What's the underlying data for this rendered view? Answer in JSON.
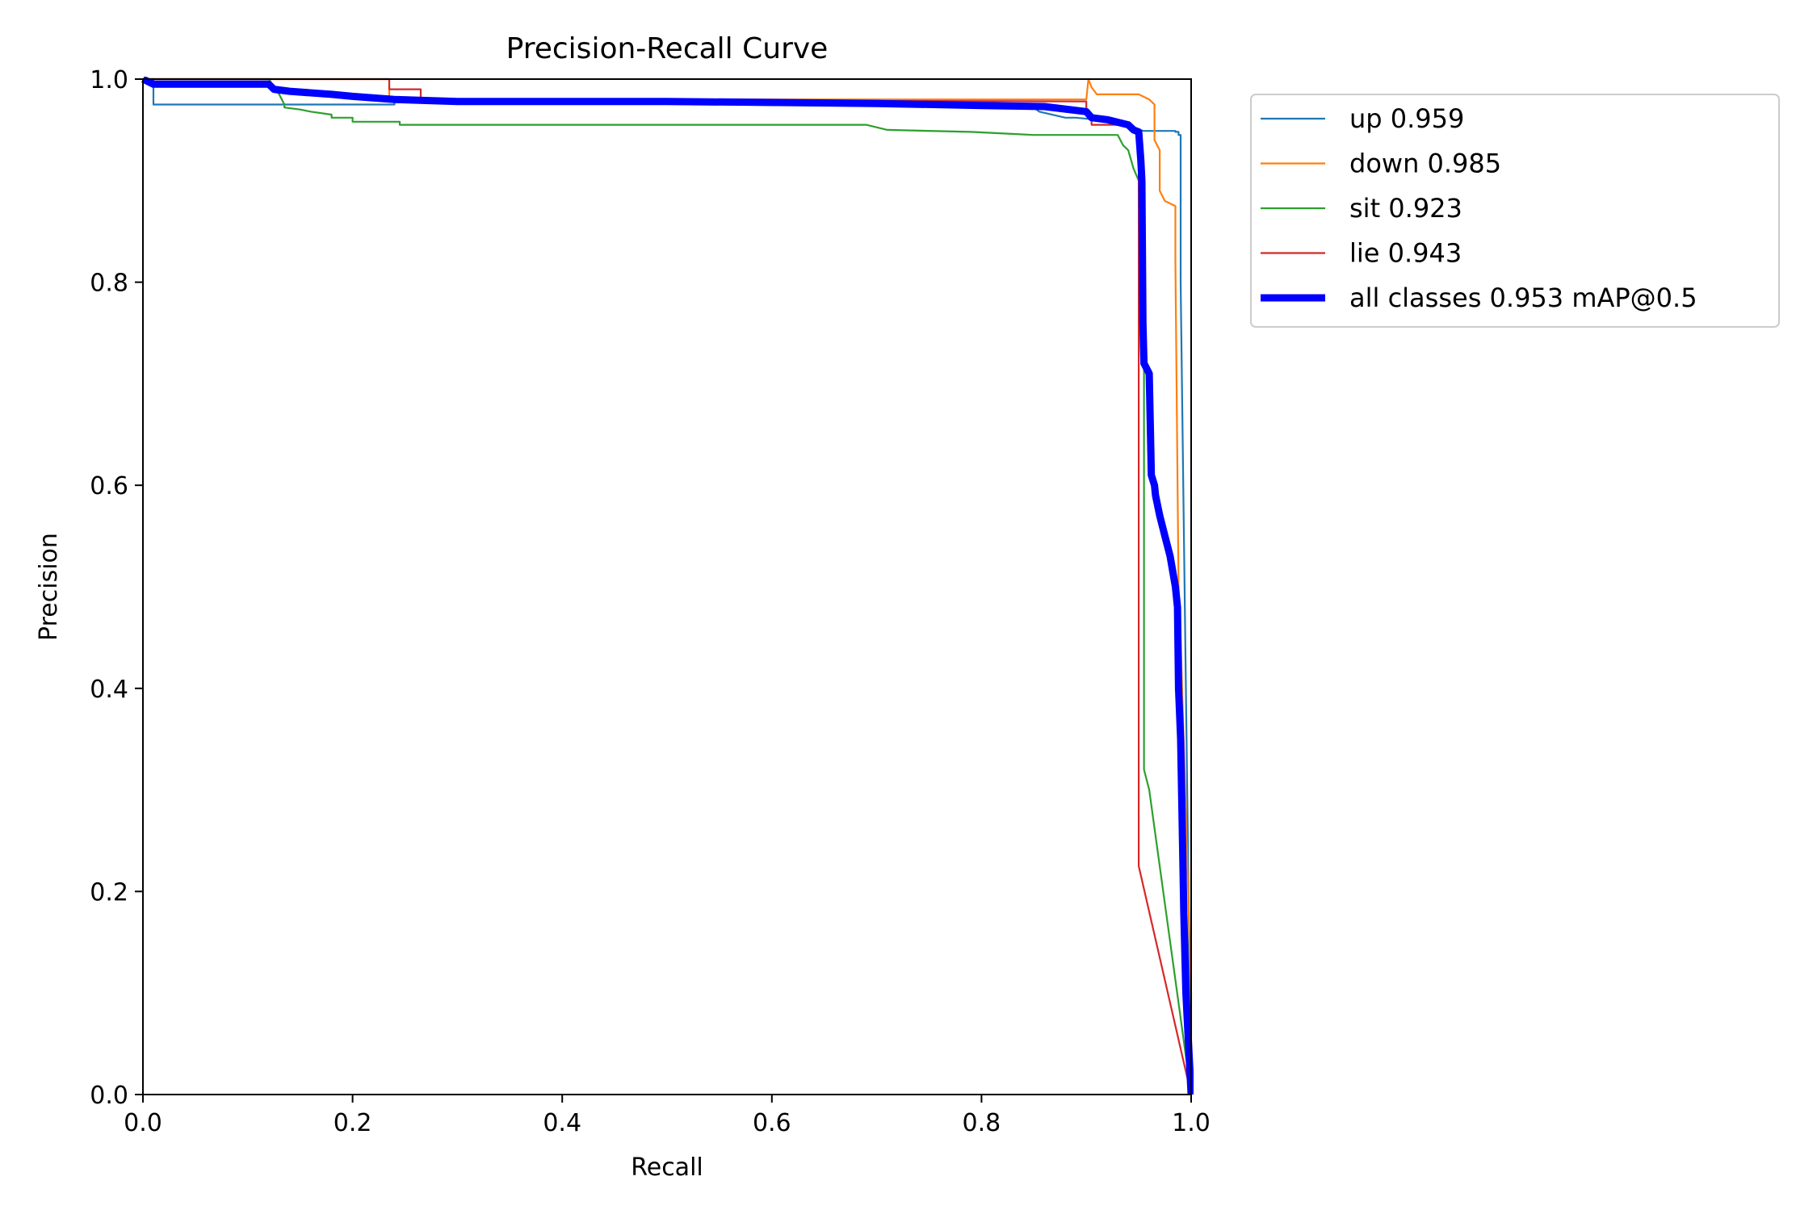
{
  "chart_data": {
    "type": "line",
    "title": "Precision-Recall Curve",
    "xlabel": "Recall",
    "ylabel": "Precision",
    "xlim": [
      0,
      1
    ],
    "ylim": [
      0,
      1
    ],
    "xticks": [
      0.0,
      0.2,
      0.4,
      0.6,
      0.8,
      1.0
    ],
    "yticks": [
      0.0,
      0.2,
      0.4,
      0.6,
      0.8,
      1.0
    ],
    "xtick_labels": [
      "0.0",
      "0.2",
      "0.4",
      "0.6",
      "0.8",
      "1.0"
    ],
    "ytick_labels": [
      "0.0",
      "0.2",
      "0.4",
      "0.6",
      "0.8",
      "1.0"
    ],
    "grid": false,
    "legend_position": "outside-upper-right",
    "series": [
      {
        "name": "up 0.959",
        "color": "#1f77b4",
        "emphasis": "normal",
        "x": [
          0,
          0.01,
          0.01,
          0.24,
          0.24,
          0.85,
          0.855,
          0.88,
          0.89,
          0.91,
          0.95,
          0.955,
          0.985,
          0.985,
          0.988,
          0.988,
          0.99,
          0.99,
          1.0
        ],
        "y": [
          1.0,
          1.0,
          0.975,
          0.975,
          0.978,
          0.972,
          0.968,
          0.962,
          0.962,
          0.96,
          0.95,
          0.949,
          0.949,
          0.948,
          0.948,
          0.945,
          0.945,
          0.8,
          0.0
        ]
      },
      {
        "name": "down 0.985",
        "color": "#ff7f0e",
        "emphasis": "normal",
        "x": [
          0,
          0.235,
          0.235,
          0.9,
          0.902,
          0.905,
          0.91,
          0.95,
          0.96,
          0.965,
          0.965,
          0.97,
          0.97,
          0.975,
          0.985,
          0.985,
          0.988,
          0.99,
          1.0,
          1.0
        ],
        "y": [
          1.0,
          1.0,
          0.98,
          0.98,
          1.0,
          0.992,
          0.985,
          0.985,
          0.98,
          0.975,
          0.94,
          0.93,
          0.89,
          0.88,
          0.875,
          0.82,
          0.5,
          0.45,
          0.1,
          0.0
        ]
      },
      {
        "name": "sit 0.923",
        "color": "#2ca02c",
        "emphasis": "normal",
        "x": [
          0,
          0.12,
          0.13,
          0.135,
          0.135,
          0.15,
          0.16,
          0.18,
          0.18,
          0.2,
          0.2,
          0.245,
          0.245,
          0.69,
          0.71,
          0.79,
          0.85,
          0.93,
          0.935,
          0.94,
          0.945,
          0.95,
          0.955,
          0.955,
          0.96,
          1.0
        ],
        "y": [
          1.0,
          1.0,
          0.985,
          0.975,
          0.972,
          0.97,
          0.968,
          0.965,
          0.962,
          0.962,
          0.958,
          0.958,
          0.955,
          0.955,
          0.95,
          0.948,
          0.945,
          0.945,
          0.935,
          0.93,
          0.912,
          0.9,
          0.9,
          0.32,
          0.3,
          0.0
        ]
      },
      {
        "name": "lie 0.943",
        "color": "#d62728",
        "emphasis": "normal",
        "x": [
          0,
          0.235,
          0.235,
          0.265,
          0.265,
          0.9,
          0.9,
          0.905,
          0.905,
          0.93,
          0.95,
          0.95,
          1.0
        ],
        "y": [
          1.0,
          1.0,
          0.99,
          0.99,
          0.98,
          0.978,
          0.97,
          0.965,
          0.955,
          0.955,
          0.95,
          0.225,
          0.0
        ]
      },
      {
        "name": "all classes 0.953 mAP@0.5",
        "color": "#0000ff",
        "emphasis": "bold",
        "x": [
          0,
          0.01,
          0.12,
          0.125,
          0.14,
          0.18,
          0.2,
          0.24,
          0.3,
          0.5,
          0.7,
          0.8,
          0.86,
          0.9,
          0.905,
          0.92,
          0.94,
          0.945,
          0.95,
          0.952,
          0.953,
          0.954,
          0.955,
          0.96,
          0.962,
          0.965,
          0.966,
          0.97,
          0.975,
          0.98,
          0.985,
          0.987,
          0.988,
          0.99,
          0.993,
          0.995,
          1.0
        ],
        "y": [
          1.0,
          0.995,
          0.995,
          0.99,
          0.988,
          0.985,
          0.983,
          0.98,
          0.978,
          0.978,
          0.976,
          0.974,
          0.973,
          0.968,
          0.962,
          0.96,
          0.955,
          0.95,
          0.948,
          0.92,
          0.9,
          0.76,
          0.72,
          0.71,
          0.61,
          0.6,
          0.59,
          0.57,
          0.55,
          0.53,
          0.5,
          0.48,
          0.4,
          0.35,
          0.18,
          0.1,
          0.0
        ]
      }
    ]
  }
}
